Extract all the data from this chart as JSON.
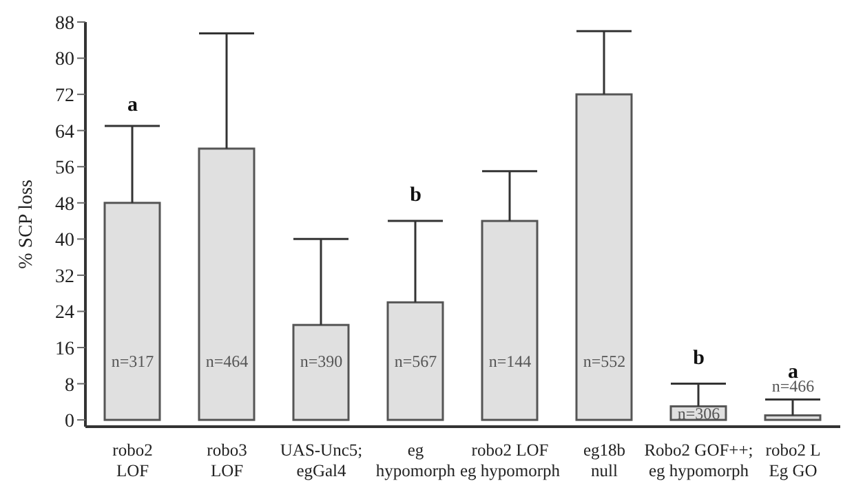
{
  "chart_data": {
    "type": "bar",
    "ylabel": "% SCP loss",
    "categories": [
      "robo2\nLOF",
      "robo3\nLOF",
      "UAS-Unc5;\negGal4",
      "eg\nhypomorph",
      "robo2 LOF\neg hypomorph",
      "eg18b\nnull",
      "Robo2 GOF++;\neg hypomorph",
      "robo2 L\nEg GO"
    ],
    "values": [
      48,
      60,
      21,
      26,
      44,
      72,
      3,
      1
    ],
    "errors": [
      [
        48,
        65
      ],
      [
        60,
        85.5
      ],
      [
        21,
        40
      ],
      [
        26,
        44
      ],
      [
        44,
        55
      ],
      [
        72,
        86
      ],
      [
        3,
        8
      ],
      [
        1,
        4.5
      ]
    ],
    "color": "#e0e0e0",
    "ylim": [
      -1.5,
      88
    ],
    "yticks": [
      0,
      8,
      16,
      24,
      32,
      40,
      48,
      56,
      64,
      72,
      80,
      88
    ],
    "grid": false,
    "legend": false,
    "annotations": [
      "a",
      "b",
      "b",
      "a",
      "n=317",
      "n=464",
      "n=390",
      "n=567",
      "n=144",
      "n=552",
      "n=306",
      "n=466"
    ]
  }
}
